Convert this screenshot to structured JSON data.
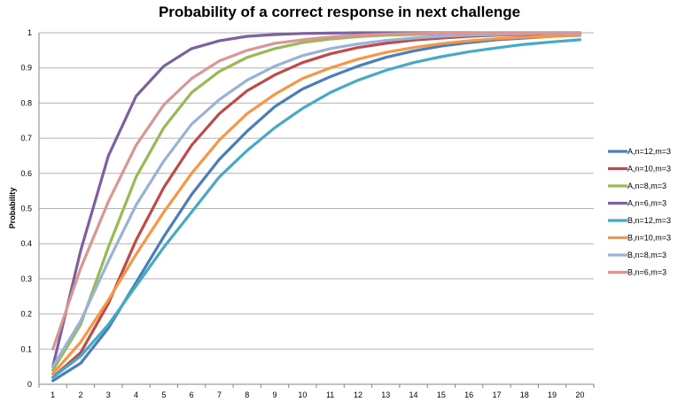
{
  "chart_data": {
    "type": "line",
    "title": "Probability of a correct response in next challenge",
    "xlabel": "",
    "ylabel": "Probability",
    "x": [
      1,
      2,
      3,
      4,
      5,
      6,
      7,
      8,
      9,
      10,
      11,
      12,
      13,
      14,
      15,
      16,
      17,
      18,
      19,
      20
    ],
    "xlim": [
      1,
      20
    ],
    "ylim": [
      0,
      1
    ],
    "yticks": [
      "0",
      "0.1",
      "0.2",
      "0.3",
      "0.4",
      "0.5",
      "0.6",
      "0.7",
      "0.8",
      "0.9",
      "1"
    ],
    "xticks": [
      "1",
      "2",
      "3",
      "4",
      "5",
      "6",
      "7",
      "8",
      "9",
      "10",
      "11",
      "12",
      "13",
      "14",
      "15",
      "16",
      "17",
      "18",
      "19",
      "20"
    ],
    "grid": "horizontal",
    "legend_position": "right",
    "series": [
      {
        "name": "A,n=12,m=3",
        "color": "#4a7ebb",
        "values": [
          0.01,
          0.06,
          0.16,
          0.29,
          0.42,
          0.54,
          0.64,
          0.72,
          0.79,
          0.84,
          0.875,
          0.905,
          0.93,
          0.948,
          0.962,
          0.972,
          0.98,
          0.985,
          0.99,
          0.993
        ]
      },
      {
        "name": "A,n=10,m=3",
        "color": "#be4b48",
        "values": [
          0.02,
          0.09,
          0.23,
          0.41,
          0.56,
          0.68,
          0.77,
          0.835,
          0.88,
          0.915,
          0.94,
          0.958,
          0.97,
          0.979,
          0.985,
          0.99,
          0.993,
          0.995,
          0.997,
          0.998
        ]
      },
      {
        "name": "A,n=8,m=3",
        "color": "#98b954",
        "values": [
          0.04,
          0.17,
          0.39,
          0.59,
          0.73,
          0.83,
          0.89,
          0.93,
          0.955,
          0.972,
          0.982,
          0.989,
          0.993,
          0.995,
          0.997,
          0.998,
          0.999,
          0.999,
          1.0,
          1.0
        ]
      },
      {
        "name": "A,n=6,m=3",
        "color": "#7d60a0",
        "values": [
          0.05,
          0.38,
          0.65,
          0.82,
          0.905,
          0.955,
          0.977,
          0.99,
          0.995,
          0.998,
          0.999,
          1.0,
          1.0,
          1.0,
          1.0,
          1.0,
          1.0,
          1.0,
          1.0,
          1.0
        ]
      },
      {
        "name": "B,n=12,m=3",
        "color": "#46aac5",
        "values": [
          0.02,
          0.08,
          0.17,
          0.28,
          0.39,
          0.49,
          0.59,
          0.665,
          0.73,
          0.785,
          0.83,
          0.865,
          0.893,
          0.915,
          0.932,
          0.946,
          0.957,
          0.967,
          0.974,
          0.98
        ]
      },
      {
        "name": "B,n=10,m=3",
        "color": "#f79646",
        "values": [
          0.03,
          0.12,
          0.24,
          0.37,
          0.49,
          0.6,
          0.695,
          0.77,
          0.825,
          0.87,
          0.9,
          0.925,
          0.944,
          0.958,
          0.969,
          0.977,
          0.983,
          0.987,
          0.99,
          0.992
        ]
      },
      {
        "name": "B,n=8,m=3",
        "color": "#99b3d8",
        "values": [
          0.05,
          0.18,
          0.35,
          0.51,
          0.635,
          0.74,
          0.81,
          0.865,
          0.905,
          0.935,
          0.955,
          0.968,
          0.978,
          0.985,
          0.99,
          0.993,
          0.995,
          0.997,
          0.998,
          0.999
        ]
      },
      {
        "name": "B,n=6,m=3",
        "color": "#d99694",
        "values": [
          0.1,
          0.33,
          0.52,
          0.68,
          0.795,
          0.87,
          0.92,
          0.95,
          0.97,
          0.98,
          0.988,
          0.993,
          0.996,
          0.998,
          0.999,
          0.999,
          1.0,
          1.0,
          1.0,
          1.0
        ]
      }
    ]
  }
}
